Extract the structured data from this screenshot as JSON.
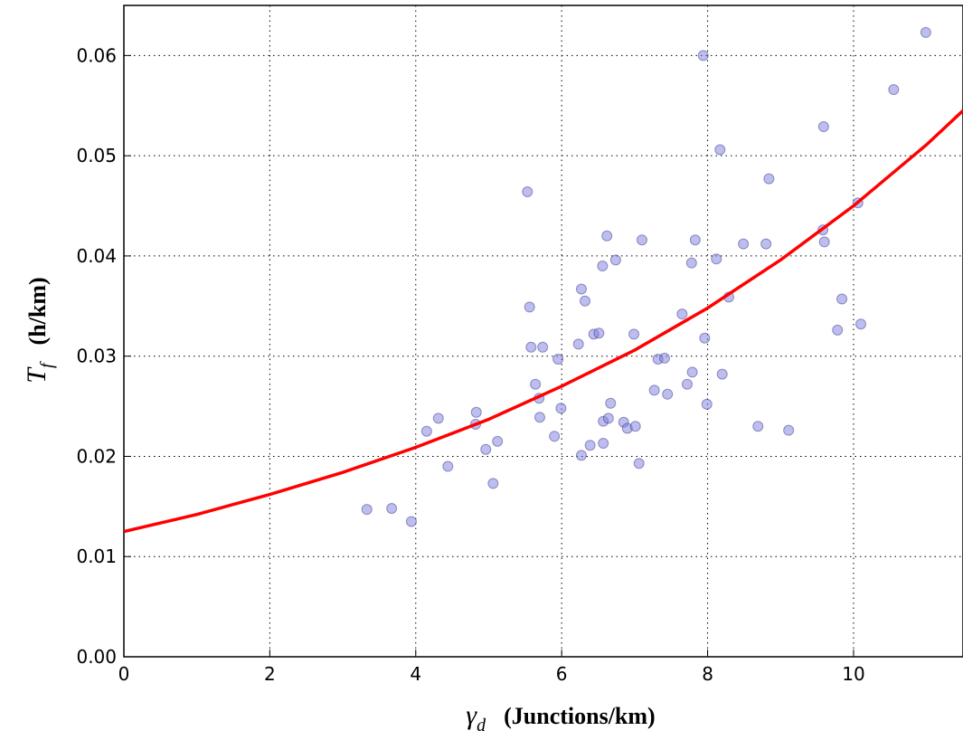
{
  "chart_data": {
    "type": "scatter",
    "xlabel": {
      "symbol": "γ",
      "subscript": "d",
      "unit": "(Junctions/km)"
    },
    "ylabel": {
      "symbol": "T",
      "subscript": "f",
      "unit": "(h/km)"
    },
    "xlim": [
      0,
      11.5
    ],
    "ylim": [
      0,
      0.065
    ],
    "xticks": [
      0,
      2,
      4,
      6,
      8,
      10
    ],
    "yticks": [
      {
        "value": 0,
        "label": "0.00"
      },
      0.01,
      0.02,
      0.03,
      0.04,
      0.05,
      0.06
    ],
    "grid": true,
    "color": "#7b7be0",
    "x": [
      3.33,
      3.67,
      3.94,
      4.15,
      4.31,
      4.44,
      4.82,
      4.83,
      4.96,
      5.06,
      5.12,
      5.53,
      5.56,
      5.58,
      5.64,
      5.69,
      5.7,
      5.74,
      5.9,
      5.95,
      5.99,
      6.23,
      6.27,
      6.27,
      6.32,
      6.39,
      6.44,
      6.51,
      6.56,
      6.57,
      6.57,
      6.62,
      6.64,
      6.67,
      6.74,
      6.85,
      6.9,
      6.99,
      7.01,
      7.06,
      7.1,
      7.27,
      7.32,
      7.41,
      7.45,
      7.65,
      7.72,
      7.78,
      7.79,
      7.83,
      7.94,
      7.96,
      7.99,
      8.12,
      8.17,
      8.2,
      8.29,
      8.49,
      8.69,
      8.8,
      8.84,
      9.11,
      9.58,
      9.59,
      9.6,
      9.78,
      9.84,
      10.06,
      10.1,
      10.55,
      10.99
    ],
    "y": [
      0.0147,
      0.0148,
      0.0135,
      0.0225,
      0.0238,
      0.019,
      0.0232,
      0.0244,
      0.0207,
      0.0173,
      0.0215,
      0.0464,
      0.0349,
      0.0309,
      0.0272,
      0.0258,
      0.0239,
      0.0309,
      0.022,
      0.0297,
      0.0248,
      0.0312,
      0.0367,
      0.0201,
      0.0355,
      0.0211,
      0.0322,
      0.0323,
      0.039,
      0.0235,
      0.0213,
      0.042,
      0.0238,
      0.0253,
      0.0396,
      0.0234,
      0.0228,
      0.0322,
      0.023,
      0.0193,
      0.0416,
      0.0266,
      0.0297,
      0.0298,
      0.0262,
      0.0342,
      0.0272,
      0.0393,
      0.0284,
      0.0416,
      0.06,
      0.0318,
      0.0252,
      0.0397,
      0.0506,
      0.0282,
      0.0359,
      0.0412,
      0.023,
      0.0412,
      0.0477,
      0.0226,
      0.0426,
      0.0529,
      0.0414,
      0.0326,
      0.0357,
      0.0453,
      0.0332,
      0.0566,
      0.0623
    ],
    "fit": {
      "color": "#ff0000",
      "x": [
        0,
        1,
        2,
        3,
        4,
        5,
        6,
        7,
        8,
        9,
        10,
        11,
        11.5
      ],
      "y": [
        0.0125,
        0.0142,
        0.0162,
        0.0184,
        0.0209,
        0.0237,
        0.027,
        0.0306,
        0.0348,
        0.0396,
        0.045,
        0.0511,
        0.0545
      ]
    }
  }
}
